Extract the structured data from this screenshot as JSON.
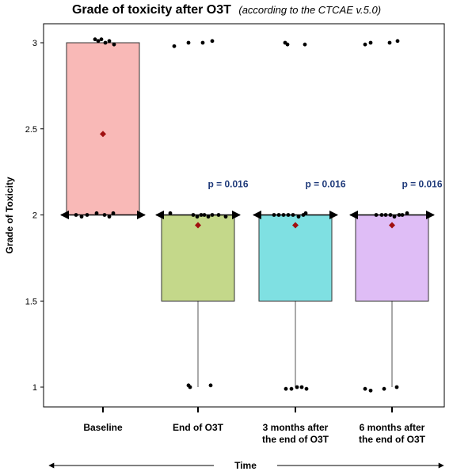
{
  "chart_data": {
    "type": "box",
    "title": "Grade of toxicity after O3T",
    "subtitle": "(according to the CTCAE v.5.0)",
    "ylabel": "Grade of Toxicity",
    "xlabel": "Time",
    "ylim": [
      0.85,
      3.1
    ],
    "yticks": [
      {
        "value": 1,
        "label": "1"
      },
      {
        "value": 1.5,
        "label": "1.5"
      },
      {
        "value": 2,
        "label": "2"
      },
      {
        "value": 2.5,
        "label": "2.5"
      },
      {
        "value": 3,
        "label": "3"
      }
    ],
    "categories": [
      {
        "line1": "Baseline",
        "line2": ""
      },
      {
        "line1": "End of O3T",
        "line2": ""
      },
      {
        "line1": "3 months after",
        "line2": "the end of O3T"
      },
      {
        "line1": "6 months after",
        "line2": "the end of O3T"
      }
    ],
    "boxes": [
      {
        "q1": 2.0,
        "q3": 3.0,
        "median": 2.0,
        "whisker_low": 2.0,
        "whisker_high": 3.0,
        "mean": 2.47,
        "color": "#f9b9b7"
      },
      {
        "q1": 1.5,
        "q3": 2.0,
        "median": 2.0,
        "whisker_low": 1.0,
        "whisker_high": 2.0,
        "mean": 1.94,
        "color": "#c4d88a"
      },
      {
        "q1": 1.5,
        "q3": 2.0,
        "median": 2.0,
        "whisker_low": 1.0,
        "whisker_high": 2.0,
        "mean": 1.94,
        "color": "#7fe0e2"
      },
      {
        "q1": 1.5,
        "q3": 2.0,
        "median": 2.0,
        "whisker_low": 1.0,
        "whisker_high": 2.0,
        "mean": 1.94,
        "color": "#dfbdf6"
      }
    ],
    "points": [
      [
        {
          "y": 3.02,
          "dx": -10
        },
        {
          "y": 3.01,
          "dx": -6
        },
        {
          "y": 3.02,
          "dx": -2
        },
        {
          "y": 3.0,
          "dx": 3
        },
        {
          "y": 3.01,
          "dx": 8
        },
        {
          "y": 2.99,
          "dx": 14
        },
        {
          "y": 2.0,
          "dx": -34
        },
        {
          "y": 1.99,
          "dx": -27
        },
        {
          "y": 2.0,
          "dx": -20
        },
        {
          "y": 2.01,
          "dx": -8
        },
        {
          "y": 2.0,
          "dx": 2
        },
        {
          "y": 1.99,
          "dx": 8
        },
        {
          "y": 2.01,
          "dx": 13
        }
      ],
      [
        {
          "y": 2.98,
          "dx": -30
        },
        {
          "y": 3.0,
          "dx": -12
        },
        {
          "y": 3.0,
          "dx": 6
        },
        {
          "y": 3.01,
          "dx": 18
        },
        {
          "y": 2.01,
          "dx": -35
        },
        {
          "y": 2.0,
          "dx": -6
        },
        {
          "y": 1.99,
          "dx": -1
        },
        {
          "y": 2.0,
          "dx": 4
        },
        {
          "y": 2.0,
          "dx": 8
        },
        {
          "y": 1.99,
          "dx": 13
        },
        {
          "y": 2.0,
          "dx": 18
        },
        {
          "y": 2.0,
          "dx": 26
        },
        {
          "y": 1.99,
          "dx": 35
        },
        {
          "y": 1.01,
          "dx": -12
        },
        {
          "y": 1.0,
          "dx": -10
        },
        {
          "y": 1.01,
          "dx": 16
        }
      ],
      [
        {
          "y": 3.0,
          "dx": -13
        },
        {
          "y": 2.99,
          "dx": -10
        },
        {
          "y": 2.99,
          "dx": 12
        },
        {
          "y": 2.0,
          "dx": -27
        },
        {
          "y": 2.0,
          "dx": -21
        },
        {
          "y": 2.0,
          "dx": -15
        },
        {
          "y": 2.0,
          "dx": -9
        },
        {
          "y": 2.0,
          "dx": -3
        },
        {
          "y": 1.99,
          "dx": 4
        },
        {
          "y": 2.0,
          "dx": 10
        },
        {
          "y": 2.01,
          "dx": 13
        },
        {
          "y": 0.99,
          "dx": -12
        },
        {
          "y": 0.99,
          "dx": -5
        },
        {
          "y": 1.0,
          "dx": 2
        },
        {
          "y": 1.0,
          "dx": 8
        },
        {
          "y": 0.99,
          "dx": 14
        }
      ],
      [
        {
          "y": 2.99,
          "dx": -34
        },
        {
          "y": 3.0,
          "dx": -27
        },
        {
          "y": 3.0,
          "dx": -3
        },
        {
          "y": 3.01,
          "dx": 7
        },
        {
          "y": 2.0,
          "dx": -20
        },
        {
          "y": 2.0,
          "dx": -13
        },
        {
          "y": 2.0,
          "dx": -8
        },
        {
          "y": 2.0,
          "dx": -2
        },
        {
          "y": 1.99,
          "dx": 3
        },
        {
          "y": 2.0,
          "dx": 9
        },
        {
          "y": 2.0,
          "dx": 13
        },
        {
          "y": 2.01,
          "dx": 19
        },
        {
          "y": 0.99,
          "dx": -34
        },
        {
          "y": 0.98,
          "dx": -27
        },
        {
          "y": 0.99,
          "dx": -10
        },
        {
          "y": 1.0,
          "dx": 6
        }
      ]
    ],
    "annotations": [
      {
        "text": "p = 0.016",
        "category": 1,
        "y": 2.18
      },
      {
        "text": "p = 0.016",
        "category": 2,
        "y": 2.18
      },
      {
        "text": "p = 0.016",
        "category": 3,
        "y": 2.18
      }
    ],
    "colors": {
      "annotation": "#1f3a7a",
      "mean_marker": "#a01010",
      "points": "#000000"
    },
    "grid": false,
    "legend": "none"
  }
}
